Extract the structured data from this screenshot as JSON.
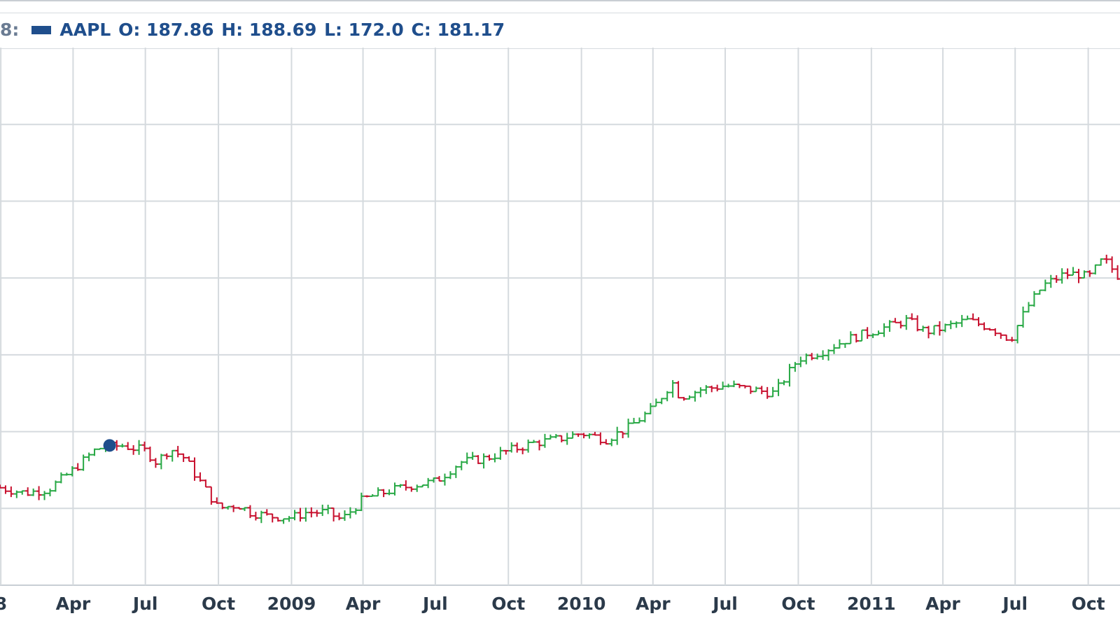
{
  "legend": {
    "prefix": "8:",
    "symbol": "AAPL",
    "open_label": "O:",
    "open": "187.86",
    "high_label": "H:",
    "high": "188.69",
    "low_label": "L:",
    "low": "172.0",
    "close_label": "C:",
    "close": "181.17",
    "swatch_color": "#1f4e8c"
  },
  "chart_data": {
    "type": "line",
    "chart_style": "ohlc",
    "symbol": "AAPL",
    "title": "",
    "xlabel": "",
    "ylabel": "",
    "grid": true,
    "y_tick_labels_visible": false,
    "x_ticks": [
      "8",
      "Apr",
      "Jul",
      "Oct",
      "2009",
      "Apr",
      "Jul",
      "Oct",
      "2010",
      "Apr",
      "Jul",
      "Oct",
      "2011",
      "Apr",
      "Jul",
      "Oct"
    ],
    "x_tick_dates": [
      "2008-01-01",
      "2008-04-01",
      "2008-07-01",
      "2008-10-01",
      "2009-01-01",
      "2009-04-01",
      "2009-07-01",
      "2009-10-01",
      "2010-01-01",
      "2010-04-01",
      "2010-07-01",
      "2010-10-01",
      "2011-01-01",
      "2011-04-01",
      "2011-07-01",
      "2011-10-01"
    ],
    "xlim": [
      "2007-12-31",
      "2011-11-10"
    ],
    "ylim": [
      0,
      7
    ],
    "up_color": "#27a844",
    "down_color": "#c8102e",
    "highlight_point": {
      "date": "2008-05-17",
      "value": 1.82,
      "color": "#1f4e8c"
    },
    "series": [
      {
        "name": "AAPL",
        "points": [
          [
            "2007-12-31",
            1.27
          ],
          [
            "2008-02-01",
            1.2
          ],
          [
            "2008-03-01",
            1.25
          ],
          [
            "2008-04-01",
            1.5
          ],
          [
            "2008-05-01",
            1.78
          ],
          [
            "2008-06-01",
            1.82
          ],
          [
            "2008-07-01",
            1.75
          ],
          [
            "2008-07-15",
            1.6
          ],
          [
            "2008-08-01",
            1.78
          ],
          [
            "2008-08-20",
            1.65
          ],
          [
            "2008-09-01",
            1.45
          ],
          [
            "2008-10-01",
            1.0
          ],
          [
            "2008-10-25",
            1.05
          ],
          [
            "2008-11-10",
            0.95
          ],
          [
            "2008-12-01",
            0.9
          ],
          [
            "2009-01-01",
            0.88
          ],
          [
            "2009-01-20",
            0.95
          ],
          [
            "2009-02-15",
            0.95
          ],
          [
            "2009-03-05",
            0.85
          ],
          [
            "2009-04-01",
            1.12
          ],
          [
            "2009-05-01",
            1.22
          ],
          [
            "2009-06-01",
            1.3
          ],
          [
            "2009-07-01",
            1.35
          ],
          [
            "2009-08-01",
            1.6
          ],
          [
            "2009-09-01",
            1.65
          ],
          [
            "2009-10-01",
            1.75
          ],
          [
            "2009-11-01",
            1.85
          ],
          [
            "2009-12-01",
            1.9
          ],
          [
            "2010-01-01",
            1.98
          ],
          [
            "2010-02-01",
            1.9
          ],
          [
            "2010-03-01",
            2.05
          ],
          [
            "2010-04-01",
            2.3
          ],
          [
            "2010-04-25",
            2.65
          ],
          [
            "2010-05-05",
            2.45
          ],
          [
            "2010-06-01",
            2.55
          ],
          [
            "2010-07-01",
            2.6
          ],
          [
            "2010-08-01",
            2.55
          ],
          [
            "2010-09-01",
            2.5
          ],
          [
            "2010-10-01",
            2.95
          ],
          [
            "2010-11-01",
            3.05
          ],
          [
            "2010-12-01",
            3.2
          ],
          [
            "2011-01-01",
            3.3
          ],
          [
            "2011-02-15",
            3.45
          ],
          [
            "2011-03-10",
            3.3
          ],
          [
            "2011-04-01",
            3.35
          ],
          [
            "2011-05-01",
            3.45
          ],
          [
            "2011-06-01",
            3.35
          ],
          [
            "2011-06-25",
            3.2
          ],
          [
            "2011-07-15",
            3.6
          ],
          [
            "2011-08-05",
            3.9
          ],
          [
            "2011-09-01",
            4.05
          ],
          [
            "2011-09-20",
            4.05
          ],
          [
            "2011-10-01",
            4.0
          ],
          [
            "2011-10-20",
            4.25
          ],
          [
            "2011-11-10",
            4.0
          ]
        ]
      }
    ]
  }
}
